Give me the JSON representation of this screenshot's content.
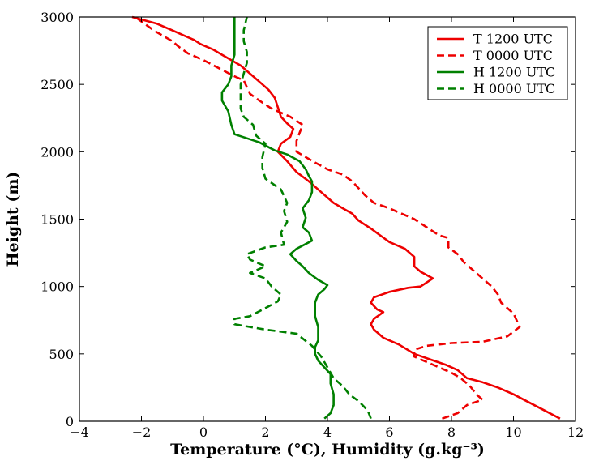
{
  "chart_data": {
    "type": "line",
    "xlabel": "Temperature (°C), Humidity (g.kg⁻³)",
    "ylabel": "Height (m)",
    "xlim": [
      -4,
      12
    ],
    "ylim": [
      0,
      3000
    ],
    "x_ticks": [
      -4,
      -2,
      0,
      2,
      4,
      6,
      8,
      10,
      12
    ],
    "y_ticks": [
      0,
      500,
      1000,
      1500,
      2000,
      2500,
      3000
    ],
    "x_tick_labels": [
      "−4",
      "−2",
      "0",
      "2",
      "4",
      "6",
      "8",
      "10",
      "12"
    ],
    "y_tick_labels": [
      "0",
      "500",
      "1000",
      "1500",
      "2000",
      "2500",
      "3000"
    ],
    "grid": false,
    "legend_position": "top-right",
    "series": [
      {
        "name": "T 1200 UTC",
        "color": "#ee0000",
        "dash": "solid",
        "points": [
          [
            11.5,
            20
          ],
          [
            11.0,
            80
          ],
          [
            10.5,
            140
          ],
          [
            10.0,
            200
          ],
          [
            9.5,
            250
          ],
          [
            9.0,
            290
          ],
          [
            8.5,
            320
          ],
          [
            8.2,
            380
          ],
          [
            7.8,
            420
          ],
          [
            7.3,
            460
          ],
          [
            6.8,
            500
          ],
          [
            6.3,
            570
          ],
          [
            5.8,
            620
          ],
          [
            5.5,
            680
          ],
          [
            5.4,
            720
          ],
          [
            5.5,
            760
          ],
          [
            5.8,
            810
          ],
          [
            5.6,
            830
          ],
          [
            5.4,
            880
          ],
          [
            5.5,
            920
          ],
          [
            6.0,
            960
          ],
          [
            6.6,
            990
          ],
          [
            7.0,
            1000
          ],
          [
            7.4,
            1060
          ],
          [
            7.0,
            1110
          ],
          [
            6.8,
            1150
          ],
          [
            6.8,
            1220
          ],
          [
            6.5,
            1280
          ],
          [
            6.0,
            1330
          ],
          [
            5.7,
            1380
          ],
          [
            5.4,
            1430
          ],
          [
            5.0,
            1490
          ],
          [
            4.8,
            1540
          ],
          [
            4.5,
            1580
          ],
          [
            4.2,
            1620
          ],
          [
            3.8,
            1700
          ],
          [
            3.4,
            1780
          ],
          [
            3.0,
            1850
          ],
          [
            2.7,
            1930
          ],
          [
            2.4,
            2000
          ],
          [
            2.5,
            2060
          ],
          [
            2.8,
            2110
          ],
          [
            2.9,
            2170
          ],
          [
            2.7,
            2210
          ],
          [
            2.5,
            2260
          ],
          [
            2.4,
            2330
          ],
          [
            2.3,
            2400
          ],
          [
            2.1,
            2460
          ],
          [
            1.8,
            2520
          ],
          [
            1.5,
            2580
          ],
          [
            1.2,
            2640
          ],
          [
            0.9,
            2680
          ],
          [
            0.6,
            2720
          ],
          [
            0.3,
            2760
          ],
          [
            -0.1,
            2800
          ],
          [
            -0.3,
            2830
          ],
          [
            -0.6,
            2860
          ],
          [
            -1.0,
            2900
          ],
          [
            -1.5,
            2950
          ],
          [
            -2.3,
            3000
          ]
        ]
      },
      {
        "name": "T 0000 UTC",
        "color": "#ee0000",
        "dash": "dashed",
        "points": [
          [
            7.7,
            20
          ],
          [
            8.2,
            60
          ],
          [
            8.5,
            120
          ],
          [
            9.0,
            160
          ],
          [
            8.8,
            200
          ],
          [
            8.6,
            260
          ],
          [
            8.3,
            320
          ],
          [
            8.0,
            360
          ],
          [
            7.6,
            400
          ],
          [
            7.2,
            440
          ],
          [
            6.8,
            480
          ],
          [
            6.8,
            530
          ],
          [
            7.2,
            560
          ],
          [
            8.0,
            580
          ],
          [
            9.0,
            590
          ],
          [
            9.8,
            630
          ],
          [
            10.2,
            700
          ],
          [
            10.0,
            800
          ],
          [
            9.6,
            880
          ],
          [
            9.5,
            940
          ],
          [
            9.3,
            1000
          ],
          [
            9.0,
            1060
          ],
          [
            8.7,
            1120
          ],
          [
            8.4,
            1180
          ],
          [
            8.2,
            1240
          ],
          [
            7.9,
            1290
          ],
          [
            7.9,
            1360
          ],
          [
            7.6,
            1380
          ],
          [
            7.2,
            1440
          ],
          [
            6.8,
            1500
          ],
          [
            6.5,
            1530
          ],
          [
            6.0,
            1580
          ],
          [
            5.5,
            1620
          ],
          [
            5.2,
            1680
          ],
          [
            5.0,
            1730
          ],
          [
            4.8,
            1780
          ],
          [
            4.5,
            1830
          ],
          [
            4.0,
            1870
          ],
          [
            3.6,
            1920
          ],
          [
            3.3,
            1960
          ],
          [
            3.0,
            2000
          ],
          [
            3.0,
            2080
          ],
          [
            3.2,
            2200
          ],
          [
            2.8,
            2260
          ],
          [
            2.2,
            2320
          ],
          [
            1.8,
            2380
          ],
          [
            1.5,
            2430
          ],
          [
            1.4,
            2480
          ],
          [
            1.3,
            2530
          ],
          [
            1.0,
            2560
          ],
          [
            0.5,
            2620
          ],
          [
            0.0,
            2680
          ],
          [
            -0.5,
            2730
          ],
          [
            -0.8,
            2780
          ],
          [
            -1.0,
            2820
          ],
          [
            -1.3,
            2860
          ],
          [
            -1.6,
            2900
          ],
          [
            -1.9,
            2950
          ],
          [
            -2.2,
            3000
          ]
        ]
      },
      {
        "name": "H 1200 UTC",
        "color": "#008000",
        "dash": "solid",
        "points": [
          [
            3.9,
            20
          ],
          [
            4.1,
            60
          ],
          [
            4.2,
            120
          ],
          [
            4.2,
            200
          ],
          [
            4.1,
            280
          ],
          [
            4.1,
            350
          ],
          [
            3.9,
            400
          ],
          [
            3.7,
            450
          ],
          [
            3.6,
            500
          ],
          [
            3.6,
            550
          ],
          [
            3.7,
            600
          ],
          [
            3.7,
            700
          ],
          [
            3.6,
            780
          ],
          [
            3.6,
            880
          ],
          [
            3.7,
            940
          ],
          [
            3.9,
            980
          ],
          [
            4.0,
            1010
          ],
          [
            3.7,
            1050
          ],
          [
            3.4,
            1100
          ],
          [
            3.2,
            1150
          ],
          [
            3.0,
            1190
          ],
          [
            2.8,
            1240
          ],
          [
            3.0,
            1280
          ],
          [
            3.5,
            1340
          ],
          [
            3.4,
            1400
          ],
          [
            3.2,
            1440
          ],
          [
            3.3,
            1510
          ],
          [
            3.2,
            1580
          ],
          [
            3.4,
            1640
          ],
          [
            3.5,
            1700
          ],
          [
            3.5,
            1780
          ],
          [
            3.4,
            1820
          ],
          [
            3.3,
            1870
          ],
          [
            3.1,
            1930
          ],
          [
            2.7,
            1980
          ],
          [
            2.3,
            2010
          ],
          [
            1.8,
            2070
          ],
          [
            1.4,
            2100
          ],
          [
            1.0,
            2130
          ],
          [
            0.9,
            2200
          ],
          [
            0.8,
            2300
          ],
          [
            0.6,
            2380
          ],
          [
            0.6,
            2440
          ],
          [
            0.8,
            2500
          ],
          [
            0.9,
            2560
          ],
          [
            0.9,
            2640
          ],
          [
            1.0,
            2720
          ],
          [
            1.0,
            2820
          ],
          [
            1.0,
            2920
          ],
          [
            1.0,
            3000
          ]
        ]
      },
      {
        "name": "H 0000 UTC",
        "color": "#008000",
        "dash": "dashed",
        "points": [
          [
            5.4,
            20
          ],
          [
            5.3,
            80
          ],
          [
            5.0,
            150
          ],
          [
            4.7,
            200
          ],
          [
            4.5,
            260
          ],
          [
            4.2,
            320
          ],
          [
            4.0,
            400
          ],
          [
            3.8,
            480
          ],
          [
            3.5,
            560
          ],
          [
            3.0,
            650
          ],
          [
            2.0,
            680
          ],
          [
            1.0,
            720
          ],
          [
            1.0,
            760
          ],
          [
            1.5,
            780
          ],
          [
            2.0,
            840
          ],
          [
            2.4,
            890
          ],
          [
            2.5,
            940
          ],
          [
            2.2,
            1000
          ],
          [
            2.0,
            1060
          ],
          [
            1.5,
            1100
          ],
          [
            2.0,
            1150
          ],
          [
            1.5,
            1200
          ],
          [
            1.4,
            1240
          ],
          [
            2.0,
            1290
          ],
          [
            2.6,
            1310
          ],
          [
            2.5,
            1400
          ],
          [
            2.7,
            1480
          ],
          [
            2.6,
            1560
          ],
          [
            2.7,
            1620
          ],
          [
            2.5,
            1720
          ],
          [
            2.0,
            1800
          ],
          [
            1.9,
            1880
          ],
          [
            1.9,
            1960
          ],
          [
            2.0,
            2060
          ],
          [
            1.7,
            2120
          ],
          [
            1.6,
            2200
          ],
          [
            1.3,
            2260
          ],
          [
            1.2,
            2320
          ],
          [
            1.2,
            2400
          ],
          [
            1.2,
            2500
          ],
          [
            1.3,
            2580
          ],
          [
            1.4,
            2660
          ],
          [
            1.4,
            2740
          ],
          [
            1.3,
            2820
          ],
          [
            1.3,
            2900
          ],
          [
            1.4,
            3000
          ]
        ]
      }
    ]
  }
}
